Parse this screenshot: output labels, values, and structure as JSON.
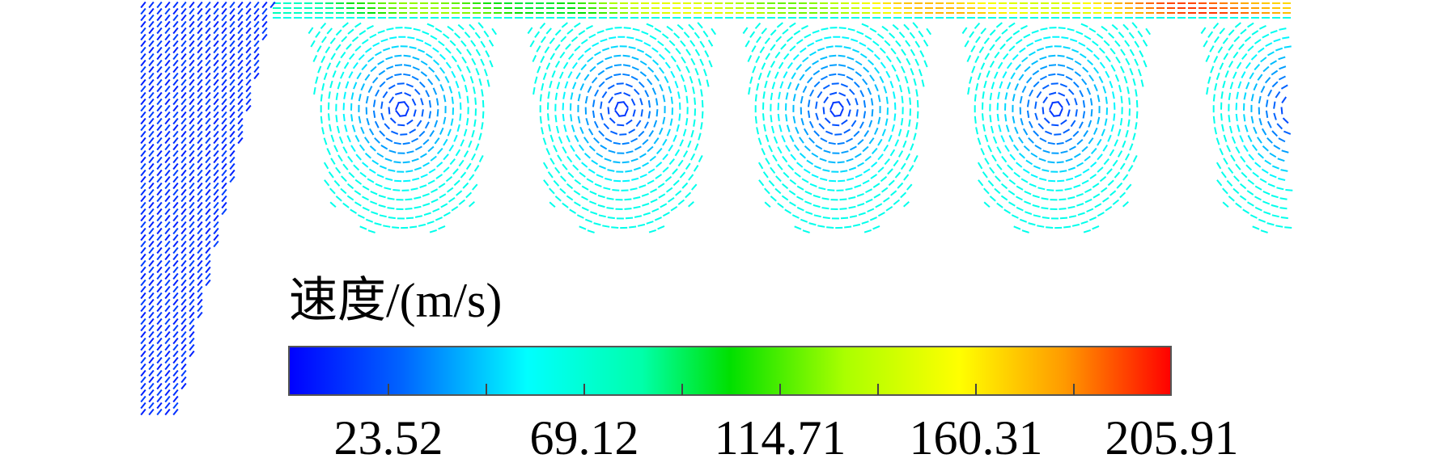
{
  "colorbar": {
    "label": "速度/(m/s)",
    "ticks": [
      "23.52",
      "69.12",
      "114.71",
      "160.31",
      "205.91"
    ]
  }
}
